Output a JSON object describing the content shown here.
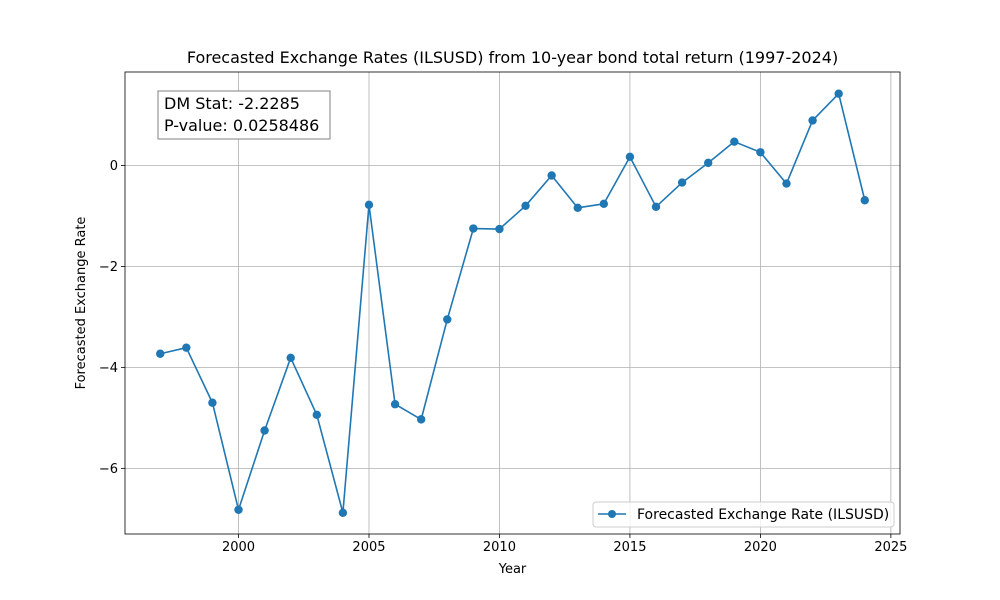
{
  "chart_data": {
    "type": "line",
    "title": "Forecasted Exchange Rates (ILSUSD) from 10-year bond total return (1997-2024)",
    "xlabel": "Year",
    "ylabel": "Forecasted Exchange Rate",
    "xlim": [
      1995.65,
      2025.35
    ],
    "ylim": [
      -7.3,
      1.85
    ],
    "xticks": [
      2000,
      2005,
      2010,
      2015,
      2020,
      2025
    ],
    "xtick_labels": [
      "2000",
      "2005",
      "2010",
      "2015",
      "2020",
      "2025"
    ],
    "yticks": [
      0,
      -2,
      -4,
      -6
    ],
    "ytick_labels": [
      "0",
      "−2",
      "−4",
      "−6"
    ],
    "grid": true,
    "legend_position": "lower-right",
    "series": [
      {
        "name": "Forecasted Exchange Rate (ILSUSD)",
        "color": "#1f77b4",
        "x": [
          1997,
          1998,
          1999,
          2000,
          2001,
          2002,
          2003,
          2004,
          2005,
          2006,
          2007,
          2008,
          2009,
          2010,
          2011,
          2012,
          2013,
          2014,
          2015,
          2016,
          2017,
          2018,
          2019,
          2020,
          2021,
          2022,
          2023,
          2024
        ],
        "y": [
          -3.73,
          -3.61,
          -4.7,
          -6.82,
          -5.25,
          -3.81,
          -4.94,
          -6.88,
          -0.78,
          -4.73,
          -5.03,
          -3.05,
          -1.25,
          -1.26,
          -0.8,
          -0.2,
          -0.84,
          -0.76,
          0.17,
          -0.82,
          -0.34,
          0.05,
          0.47,
          0.26,
          -0.36,
          0.89,
          1.42,
          -0.69
        ]
      }
    ],
    "annotation": {
      "lines": [
        "DM Stat: -2.2285",
        "P-value: 0.0258486"
      ],
      "position": "top-left"
    }
  }
}
